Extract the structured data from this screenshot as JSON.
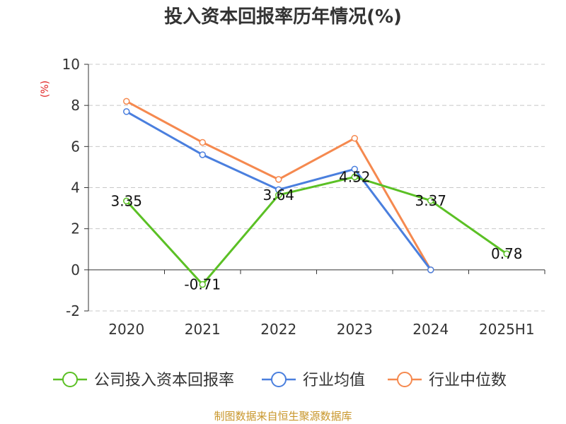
{
  "chart_data": {
    "type": "line",
    "title": "投入资本回报率历年情况(%)",
    "unit_label": "(%)",
    "categories": [
      "2020",
      "2021",
      "2022",
      "2023",
      "2024",
      "2025H1"
    ],
    "ylim": [
      -2,
      10
    ],
    "yticks": [
      -2,
      0,
      2,
      4,
      6,
      8,
      10
    ],
    "grid": true,
    "legend_position": "bottom",
    "series": [
      {
        "name": "公司投入资本回报率",
        "color": "#5bc025",
        "values": [
          3.35,
          -0.71,
          3.64,
          4.52,
          3.37,
          0.78
        ],
        "labels": [
          "3.35",
          "-0.71",
          "3.64",
          "4.52",
          "3.37",
          "0.78"
        ]
      },
      {
        "name": "行业均值",
        "color": "#4a7fde",
        "values": [
          7.7,
          5.6,
          3.9,
          4.9,
          0.0,
          null
        ]
      },
      {
        "name": "行业中位数",
        "color": "#f5894f",
        "values": [
          8.2,
          6.2,
          4.4,
          6.4,
          0.0,
          null
        ]
      }
    ]
  },
  "source_text": "制图数据来自恒生聚源数据库",
  "colors": {
    "title": "#333333",
    "axis": "#333333",
    "grid": "#c8c8c8",
    "unit": "#e02020",
    "source": "#c8962a"
  }
}
